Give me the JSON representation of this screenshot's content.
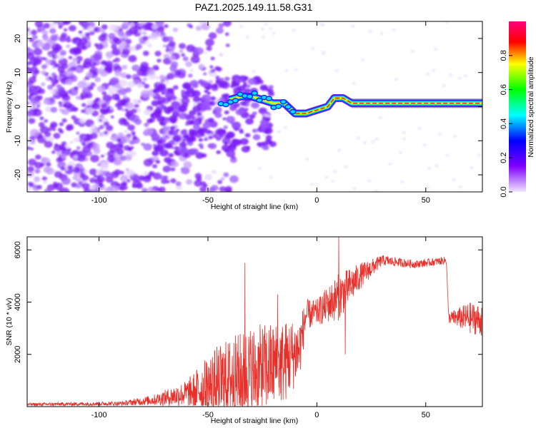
{
  "title": "PAZ1.2025.149.11.58.G31",
  "chart_data": [
    {
      "type": "heatmap",
      "xlabel": "Height of straight line (km)",
      "ylabel": "Frequency (Hz)",
      "xlim": [
        -133,
        76
      ],
      "ylim": [
        -25,
        25
      ],
      "xticks": [
        -100,
        -50,
        0,
        50
      ],
      "yticks": [
        -20,
        -10,
        0,
        10,
        20
      ],
      "colorbar": {
        "label": "Normalized spectral amplitude",
        "range": [
          0,
          1
        ],
        "ticks": [
          0.0,
          0.2,
          0.4,
          0.6,
          0.8
        ],
        "colormap": [
          "#f0e6ff",
          "#8000ff",
          "#0000ff",
          "#00ffff",
          "#00ff00",
          "#ffff00",
          "#ff0000",
          "#ff0080"
        ]
      },
      "ridge": [
        {
          "x": -40,
          "f": 2
        },
        {
          "x": -35,
          "f": 3
        },
        {
          "x": -30,
          "f": 3
        },
        {
          "x": -25,
          "f": 2
        },
        {
          "x": -20,
          "f": 1
        },
        {
          "x": -15,
          "f": 1
        },
        {
          "x": -10,
          "f": -2
        },
        {
          "x": -5,
          "f": -2
        },
        {
          "x": 0,
          "f": -1
        },
        {
          "x": 5,
          "f": 0
        },
        {
          "x": 8,
          "f": 2.5
        },
        {
          "x": 12,
          "f": 2.5
        },
        {
          "x": 16,
          "f": 1
        },
        {
          "x": 30,
          "f": 1
        },
        {
          "x": 60,
          "f": 1
        },
        {
          "x": 76,
          "f": 1
        }
      ]
    },
    {
      "type": "line",
      "xlabel": "Height of straight line (km)",
      "ylabel": "SNR (10 * v/v)",
      "xlim": [
        -133,
        76
      ],
      "ylim": [
        0,
        6500
      ],
      "xticks": [
        -100,
        -50,
        0,
        50
      ],
      "yticks": [
        2000,
        4000,
        6000
      ],
      "series_color": "#e8302a",
      "envelope": [
        {
          "x": -133,
          "mean": 80,
          "amp": 60
        },
        {
          "x": -90,
          "mean": 120,
          "amp": 80
        },
        {
          "x": -75,
          "mean": 250,
          "amp": 200
        },
        {
          "x": -60,
          "mean": 500,
          "amp": 500
        },
        {
          "x": -45,
          "mean": 900,
          "amp": 1500
        },
        {
          "x": -30,
          "mean": 1300,
          "amp": 1800
        },
        {
          "x": -15,
          "mean": 1700,
          "amp": 1600
        },
        {
          "x": -8,
          "mean": 2200,
          "amp": 1200
        },
        {
          "x": -5,
          "mean": 3500,
          "amp": 600
        },
        {
          "x": 0,
          "mean": 3600,
          "amp": 500
        },
        {
          "x": 10,
          "mean": 4200,
          "amp": 900
        },
        {
          "x": 20,
          "mean": 5000,
          "amp": 500
        },
        {
          "x": 30,
          "mean": 5600,
          "amp": 200
        },
        {
          "x": 45,
          "mean": 5450,
          "amp": 150
        },
        {
          "x": 59.5,
          "mean": 5600,
          "amp": 150
        },
        {
          "x": 60.5,
          "mean": 3400,
          "amp": 200
        },
        {
          "x": 70,
          "mean": 3400,
          "amp": 600
        },
        {
          "x": 76,
          "mean": 3300,
          "amp": 600
        }
      ],
      "spikes": [
        {
          "x": -33,
          "y": 5500
        },
        {
          "x": -18,
          "y": 4300
        },
        {
          "x": 10,
          "y": 6500
        },
        {
          "x": 13,
          "y": 2000
        }
      ]
    }
  ]
}
